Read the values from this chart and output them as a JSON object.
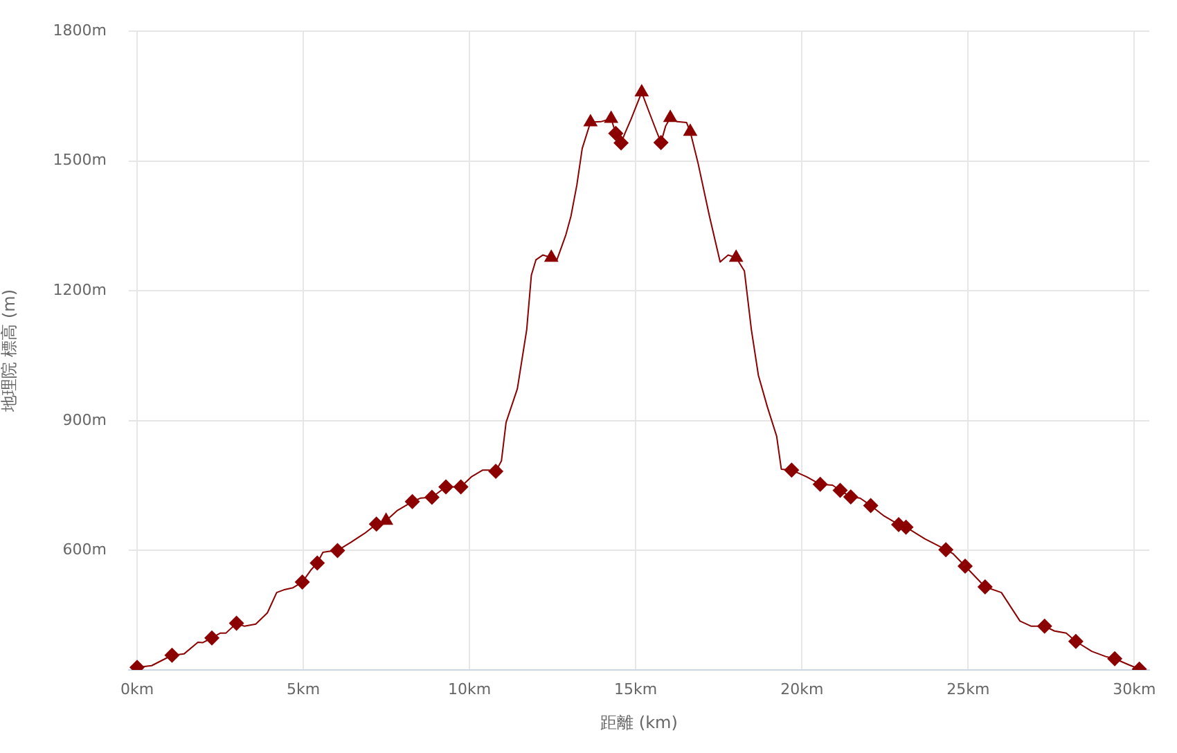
{
  "chart_data": {
    "type": "line",
    "xlabel": "距離 (km)",
    "ylabel": "地理院 標高 (m)",
    "xlim": [
      -0.25,
      30.45
    ],
    "ylim": [
      324,
      1800
    ],
    "xticks": [
      {
        "value": 0,
        "label": "0km"
      },
      {
        "value": 5,
        "label": "5km"
      },
      {
        "value": 10,
        "label": "10km"
      },
      {
        "value": 15,
        "label": "15km"
      },
      {
        "value": 20,
        "label": "20km"
      },
      {
        "value": 25,
        "label": "25km"
      },
      {
        "value": 30,
        "label": "30km"
      }
    ],
    "yticks": [
      {
        "value": 600,
        "label": "600m"
      },
      {
        "value": 900,
        "label": "900m"
      },
      {
        "value": 1200,
        "label": "1200m"
      },
      {
        "value": 1500,
        "label": "1500m"
      },
      {
        "value": 1800,
        "label": "1800m"
      }
    ],
    "grid": true,
    "series": [
      {
        "color": "#8b0000",
        "x": [
          0,
          0.44,
          1.05,
          1.41,
          1.83,
          1.97,
          2.25,
          2.5,
          2.67,
          2.99,
          3.23,
          3.57,
          3.92,
          4.2,
          4.41,
          4.69,
          4.97,
          5.24,
          5.42,
          5.59,
          5.76,
          6.03,
          6.43,
          6.85,
          7.2,
          7.49,
          7.82,
          8.28,
          8.52,
          8.87,
          9.29,
          9.74,
          10.05,
          10.4,
          10.58,
          10.79,
          10.96,
          11.1,
          11.44,
          11.72,
          11.86,
          12.0,
          12.21,
          12.46,
          12.63,
          12.9,
          13.05,
          13.23,
          13.39,
          13.64,
          13.95,
          14.26,
          14.4,
          14.56,
          14.68,
          14.86,
          15.18,
          15.41,
          15.62,
          15.76,
          15.9,
          16.04,
          16.25,
          16.53,
          16.64,
          16.87,
          17.22,
          17.54,
          17.78,
          18.02,
          18.27,
          18.48,
          18.69,
          18.96,
          19.24,
          19.38,
          19.69,
          20.15,
          20.55,
          20.92,
          21.15,
          21.47,
          21.75,
          22.07,
          22.45,
          22.91,
          23.13,
          23.7,
          24.33,
          24.54,
          24.91,
          25.51,
          26.0,
          26.56,
          26.9,
          27.3,
          27.6,
          27.95,
          28.24,
          28.72,
          29.14,
          29.41,
          29.83,
          30.15
        ],
        "values": [
          330,
          334,
          358,
          361,
          388,
          387,
          398,
          409,
          409,
          432,
          425,
          430,
          456,
          503,
          509,
          514,
          527,
          556,
          571,
          596,
          598,
          600,
          619,
          640,
          661,
          669,
          692,
          713,
          721,
          723,
          747,
          747,
          770,
          786,
          786,
          783,
          807,
          896,
          974,
          1110,
          1236,
          1272,
          1283,
          1277,
          1272,
          1330,
          1372,
          1445,
          1529,
          1590,
          1591,
          1598,
          1564,
          1542,
          1565,
          1597,
          1659,
          1612,
          1570,
          1543,
          1581,
          1600,
          1591,
          1589,
          1568,
          1497,
          1372,
          1267,
          1283,
          1277,
          1246,
          1110,
          1005,
          932,
          864,
          788,
          786,
          770,
          753,
          751,
          739,
          724,
          721,
          704,
          681,
          660,
          654,
          627,
          602,
          593,
          564,
          516,
          503,
          437,
          425,
          425,
          414,
          409,
          390,
          367,
          355,
          350,
          336,
          326
        ]
      },
      {
        "type": "scatter",
        "color": "#8b0000",
        "marker": "diamond",
        "x": [
          0,
          1.05,
          2.25,
          2.99,
          4.97,
          5.42,
          6.03,
          7.2,
          8.28,
          8.87,
          9.29,
          9.74,
          10.79,
          14.4,
          14.56,
          15.76,
          19.69,
          20.55,
          21.15,
          21.47,
          22.07,
          22.91,
          23.13,
          24.33,
          24.91,
          25.51,
          27.3,
          28.24,
          29.41,
          30.15
        ],
        "values": [
          330,
          358,
          398,
          432,
          527,
          571,
          600,
          661,
          713,
          723,
          747,
          747,
          783,
          1564,
          1542,
          1543,
          786,
          753,
          739,
          724,
          704,
          660,
          654,
          602,
          564,
          516,
          425,
          390,
          350,
          326
        ]
      },
      {
        "type": "scatter",
        "color": "#8b0000",
        "marker": "triangle",
        "x": [
          7.49,
          12.46,
          13.64,
          14.26,
          15.18,
          16.04,
          16.64,
          18.02
        ],
        "values": [
          669,
          1277,
          1590,
          1598,
          1659,
          1600,
          1568,
          1277
        ]
      }
    ]
  }
}
